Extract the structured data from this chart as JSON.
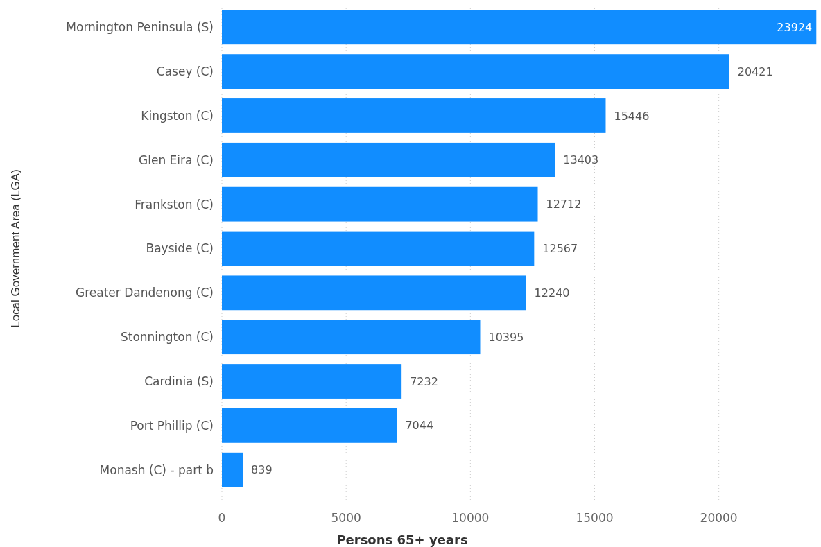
{
  "chart_data": {
    "type": "bar",
    "orientation": "horizontal",
    "xlabel": "Persons 65+ years",
    "ylabel": "Local Government Area (LGA)",
    "categories": [
      "Mornington Peninsula (S)",
      "Casey (C)",
      "Kingston (C)",
      "Glen Eira (C)",
      "Frankston (C)",
      "Bayside (C)",
      "Greater Dandenong (C)",
      "Stonnington (C)",
      "Cardinia (S)",
      "Port Phillip (C)",
      "Monash (C) - part b"
    ],
    "values": [
      23924,
      20421,
      15446,
      13403,
      12712,
      12567,
      12240,
      10395,
      7232,
      7044,
      839
    ],
    "color": "#118dff",
    "xlim": [
      0,
      24000
    ],
    "xticks": [
      0,
      5000,
      10000,
      15000,
      20000
    ],
    "grid": "x",
    "data_labels": true
  }
}
